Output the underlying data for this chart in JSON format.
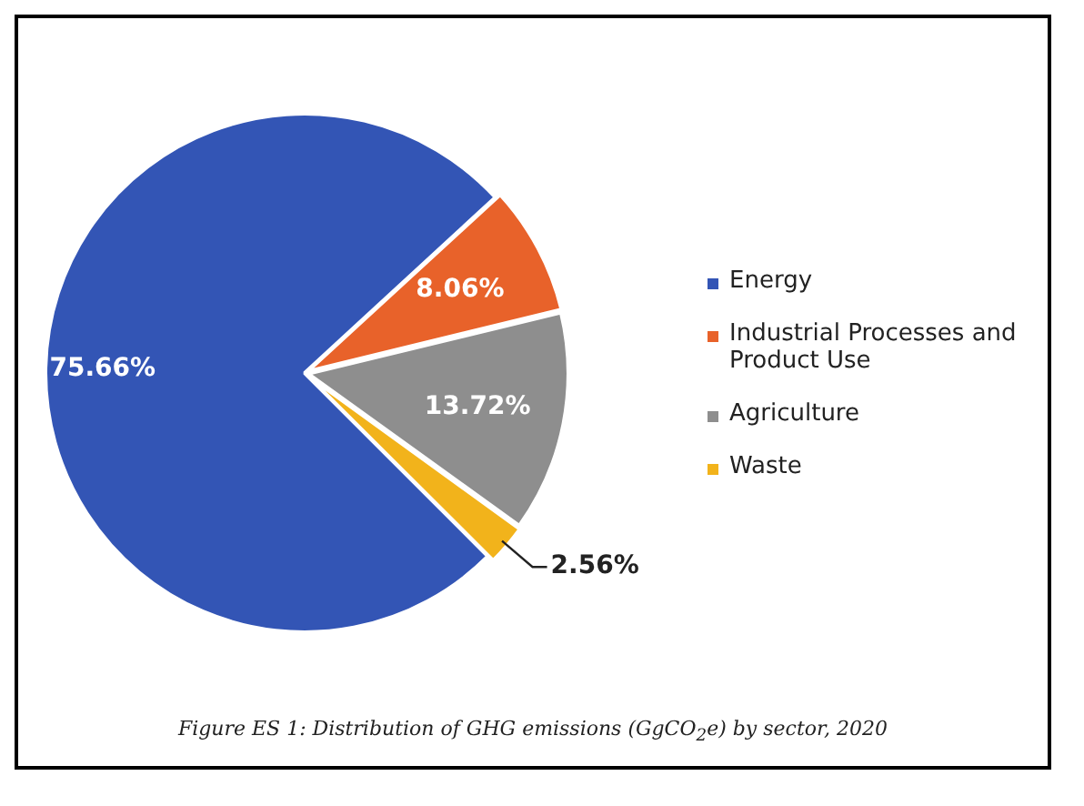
{
  "chart_data": {
    "type": "pie",
    "annotations": [
      "Figure ES 1: Distribution of GHG emissions (GgCO$_{2}$e) by sector, 2020"
    ],
    "categories": [
      "Energy",
      "Industrial Processes and Product Use",
      "Agriculture",
      "Waste"
    ],
    "values": [
      75.66,
      8.06,
      13.72,
      2.56
    ],
    "value_labels": [
      "75.66%",
      "8.06%",
      "13.72%",
      "2.56%"
    ],
    "colors": [
      "#3355b5",
      "#e8622a",
      "#8e8e8e",
      "#f2b31b"
    ],
    "legend": "right"
  }
}
